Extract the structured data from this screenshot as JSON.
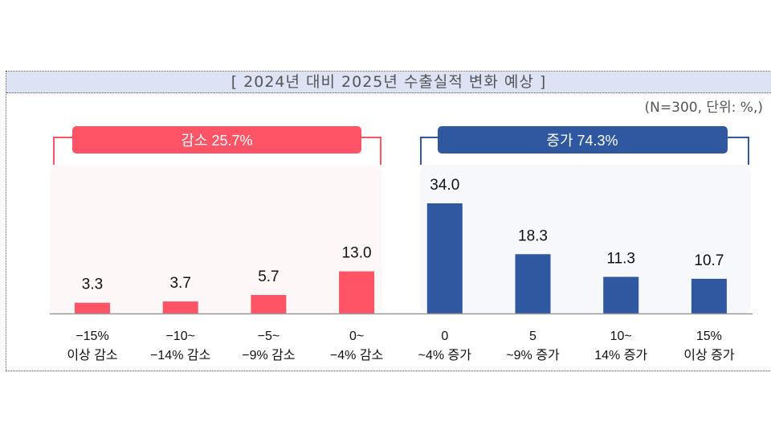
{
  "title": "[ 2024년 대비 2025년 수출실적 변화 예상 ]",
  "unit_note": "(N=300, 단위: %,)",
  "colors": {
    "decrease": "#fe5465",
    "increase": "#2f58a0",
    "decrease_bg": "#fdf7f7",
    "increase_bg": "#f6f8fb",
    "header_bg": "#dde3f5"
  },
  "groups": [
    {
      "label": "감소 25.7%",
      "color": "#fe5465"
    },
    {
      "label": "증가 74.3%",
      "color": "#2f58a0"
    }
  ],
  "chart_data": {
    "type": "bar",
    "title": "[ 2024년 대비 2025년 수출실적 변화 예상 ]",
    "categories": [
      [
        "−15%",
        "이상 감소"
      ],
      [
        "−10~",
        "−14% 감소"
      ],
      [
        "−5~",
        "−9% 감소"
      ],
      [
        "0~",
        "−4% 감소"
      ],
      [
        "0",
        "~4% 증가"
      ],
      [
        "5",
        "~9% 증가"
      ],
      [
        "10~",
        "14% 증가"
      ],
      [
        "15%",
        "이상 증가"
      ]
    ],
    "values": [
      3.3,
      3.7,
      5.7,
      13.0,
      34.0,
      18.3,
      11.3,
      10.7
    ],
    "value_labels": [
      "3.3",
      "3.7",
      "5.7",
      "13.0",
      "34.0",
      "18.3",
      "11.3",
      "10.7"
    ],
    "bar_colors": [
      "#fe5465",
      "#fe5465",
      "#fe5465",
      "#fe5465",
      "#2f58a0",
      "#2f58a0",
      "#2f58a0",
      "#2f58a0"
    ],
    "ylim": [
      0,
      34
    ],
    "grid": false,
    "xlabel": "",
    "ylabel": ""
  }
}
